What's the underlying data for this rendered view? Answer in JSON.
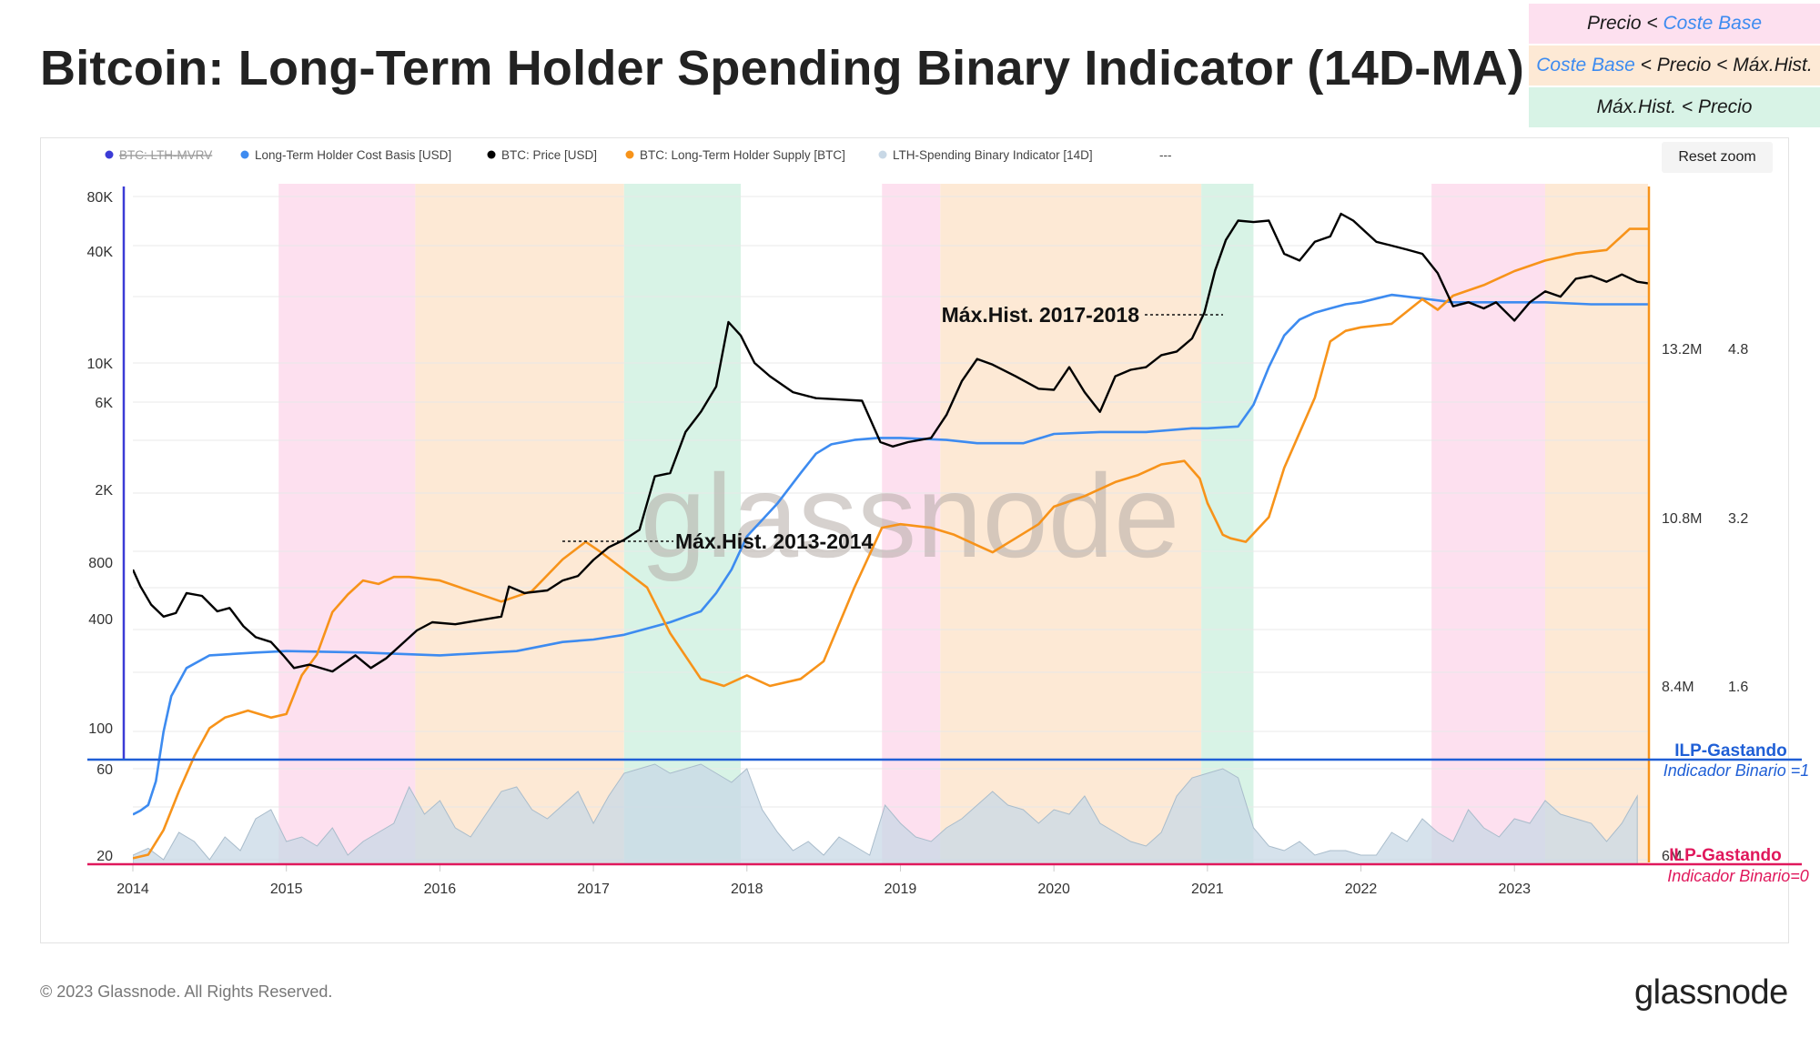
{
  "title": "Bitcoin: Long-Term Holder Spending Binary Indicator (14D-MA)",
  "key_box": [
    {
      "parts": [
        {
          "t": "Precio < ",
          "c": "dark"
        },
        {
          "t": "Coste Base",
          "c": "blue"
        }
      ],
      "bg": "#fde0ef"
    },
    {
      "parts": [
        {
          "t": "Coste Base",
          "c": "blue"
        },
        {
          "t": " < Precio < Máx.Hist.",
          "c": "dark"
        }
      ],
      "bg": "#fde9d5"
    },
    {
      "parts": [
        {
          "t": "Máx.Hist. < Precio",
          "c": "dark"
        }
      ],
      "bg": "#d8f3e6"
    }
  ],
  "reset_zoom_label": "Reset zoom",
  "footer_copyright": "© 2023 Glassnode. All Rights Reserved.",
  "brand": "glassnode",
  "chart_data": {
    "type": "line",
    "title": "Bitcoin: Long-Term Holder Spending Binary Indicator (14D-MA)",
    "legend_position": "top-left",
    "grid": true,
    "watermark": "glassnode",
    "legend": [
      {
        "name": "BTC: LTH-MVRV",
        "color": "#3b3bd6",
        "disabled": true
      },
      {
        "name": "Long-Term Holder Cost Basis [USD]",
        "color": "#3d8bf0"
      },
      {
        "name": "BTC: Price [USD]",
        "color": "#000000"
      },
      {
        "name": "BTC: Long-Term Holder Supply [BTC]",
        "color": "#f7931a"
      },
      {
        "name": "LTH-Spending Binary Indicator [14D]",
        "color": "#c8d8e6"
      },
      {
        "name": "---",
        "color": "#888888"
      }
    ],
    "x_ticks": [
      "2014",
      "2015",
      "2016",
      "2017",
      "2018",
      "2019",
      "2020",
      "2021",
      "2022",
      "2023"
    ],
    "x_range": [
      2014.0,
      2023.87
    ],
    "price_axis": {
      "scale": "log",
      "ticks": [
        "80K",
        "40K",
        "10K",
        "6K",
        "2K",
        "800",
        "400",
        "100"
      ]
    },
    "binary_axis": {
      "ticks": [
        "60",
        "20"
      ]
    },
    "supply_axis": {
      "ticks": [
        "13.2M",
        "10.8M",
        "8.4M",
        "6M"
      ]
    },
    "mvrv_axis": {
      "ticks": [
        "4.8",
        "3.2",
        "1.6"
      ]
    },
    "regimes": [
      {
        "start": 2014.95,
        "end": 2015.84,
        "label": "Precio < Coste Base",
        "color": "#fde0ef"
      },
      {
        "start": 2015.84,
        "end": 2017.2,
        "label": "Coste Base < Precio < Máx.Hist.",
        "color": "#fde9d5"
      },
      {
        "start": 2017.2,
        "end": 2017.96,
        "label": "Máx.Hist. < Precio",
        "color": "#d8f3e6"
      },
      {
        "start": 2018.88,
        "end": 2019.26,
        "label": "Precio < Coste Base",
        "color": "#fde0ef"
      },
      {
        "start": 2019.26,
        "end": 2020.96,
        "label": "Coste Base < Precio < Máx.Hist.",
        "color": "#fde9d5"
      },
      {
        "start": 2020.96,
        "end": 2021.3,
        "label": "Máx.Hist. < Precio",
        "color": "#d8f3e6"
      },
      {
        "start": 2022.46,
        "end": 2023.2,
        "label": "Precio < Coste Base",
        "color": "#fde0ef"
      },
      {
        "start": 2023.2,
        "end": 2023.87,
        "label": "Coste Base < Precio < Máx.Hist.",
        "color": "#fde9d5"
      }
    ],
    "annotations": [
      {
        "text": "Máx.Hist. 2013-2014",
        "x": 2016.76,
        "price": 1150
      },
      {
        "text": "Máx.Hist. 2017-2018",
        "x": 2020.86,
        "price": 19700
      }
    ],
    "threshold_lines": [
      {
        "label": "ILP-Gastando",
        "sublabel": "Indicador Binario =1",
        "color": "#1f5fd6"
      },
      {
        "label": "ILP-Gastando",
        "sublabel": "Indicador Binario=0",
        "color": "#e0185c"
      }
    ],
    "series": [
      {
        "name": "BTC: Price [USD]",
        "color": "#000000",
        "x": [
          2014.0,
          2014.05,
          2014.12,
          2014.2,
          2014.28,
          2014.35,
          2014.45,
          2014.55,
          2014.63,
          2014.72,
          2014.8,
          2014.9,
          2014.98,
          2015.05,
          2015.15,
          2015.3,
          2015.45,
          2015.55,
          2015.65,
          2015.75,
          2015.85,
          2015.95,
          2016.1,
          2016.25,
          2016.4,
          2016.45,
          2016.55,
          2016.7,
          2016.8,
          2016.9,
          2017.0,
          2017.1,
          2017.2,
          2017.3,
          2017.4,
          2017.5,
          2017.6,
          2017.7,
          2017.8,
          2017.88,
          2017.96,
          2018.05,
          2018.15,
          2018.3,
          2018.45,
          2018.6,
          2018.75,
          2018.87,
          2018.95,
          2019.05,
          2019.2,
          2019.3,
          2019.4,
          2019.5,
          2019.6,
          2019.75,
          2019.9,
          2020.0,
          2020.1,
          2020.2,
          2020.3,
          2020.4,
          2020.5,
          2020.6,
          2020.7,
          2020.8,
          2020.9,
          2020.98,
          2021.05,
          2021.12,
          2021.2,
          2021.3,
          2021.4,
          2021.5,
          2021.6,
          2021.7,
          2021.8,
          2021.87,
          2021.95,
          2022.1,
          2022.2,
          2022.3,
          2022.4,
          2022.5,
          2022.6,
          2022.7,
          2022.8,
          2022.88,
          2023.0,
          2023.1,
          2023.2,
          2023.3,
          2023.4,
          2023.5,
          2023.6,
          2023.7,
          2023.8,
          2023.87
        ],
        "y": [
          800,
          650,
          520,
          450,
          470,
          600,
          580,
          480,
          500,
          400,
          350,
          330,
          280,
          240,
          250,
          230,
          280,
          240,
          270,
          320,
          380,
          420,
          410,
          430,
          450,
          650,
          600,
          620,
          700,
          740,
          900,
          1050,
          1150,
          1300,
          2500,
          2600,
          4300,
          5500,
          7500,
          16500,
          14000,
          10000,
          8500,
          7000,
          6500,
          6400,
          6300,
          3800,
          3600,
          3800,
          4000,
          5300,
          8000,
          10500,
          9800,
          8500,
          7300,
          7200,
          9500,
          7000,
          5500,
          8500,
          9200,
          9500,
          11000,
          11500,
          13500,
          18500,
          31000,
          45000,
          57000,
          56000,
          57000,
          38000,
          35000,
          44000,
          47000,
          62000,
          57000,
          44000,
          42000,
          40000,
          38000,
          30000,
          20000,
          21000,
          19500,
          21000,
          16800,
          21000,
          24000,
          22500,
          28000,
          29000,
          27000,
          29500,
          27000,
          26500
        ]
      },
      {
        "name": "Long-Term Holder Cost Basis [USD]",
        "color": "#3d8bf0",
        "x": [
          2014.0,
          2014.05,
          2014.1,
          2014.15,
          2014.2,
          2014.25,
          2014.35,
          2014.5,
          2014.8,
          2015.0,
          2015.5,
          2016.0,
          2016.5,
          2016.8,
          2017.0,
          2017.2,
          2017.5,
          2017.7,
          2017.8,
          2017.9,
          2018.0,
          2018.2,
          2018.35,
          2018.45,
          2018.55,
          2018.7,
          2018.85,
          2019.0,
          2019.3,
          2019.5,
          2019.8,
          2020.0,
          2020.3,
          2020.6,
          2020.9,
          2021.0,
          2021.2,
          2021.3,
          2021.4,
          2021.5,
          2021.6,
          2021.7,
          2021.8,
          2021.9,
          2022.0,
          2022.2,
          2022.4,
          2022.6,
          2022.8,
          2023.0,
          2023.2,
          2023.5,
          2023.87
        ],
        "y": [
          40,
          42,
          45,
          60,
          110,
          170,
          240,
          280,
          290,
          295,
          290,
          280,
          295,
          330,
          340,
          360,
          420,
          480,
          600,
          800,
          1200,
          1800,
          2600,
          3300,
          3700,
          3900,
          4000,
          4000,
          3900,
          3750,
          3750,
          4200,
          4300,
          4300,
          4500,
          4500,
          4600,
          6000,
          9500,
          14000,
          17000,
          18500,
          19500,
          20500,
          21000,
          23000,
          22000,
          21000,
          21000,
          21000,
          21000,
          20500,
          20500
        ]
      },
      {
        "name": "BTC: Long-Term Holder Supply [BTC]",
        "color": "#f7931a",
        "x": [
          2014.0,
          2014.1,
          2014.2,
          2014.3,
          2014.4,
          2014.5,
          2014.6,
          2014.75,
          2014.9,
          2015.0,
          2015.1,
          2015.2,
          2015.3,
          2015.4,
          2015.5,
          2015.6,
          2015.7,
          2015.8,
          2016.0,
          2016.2,
          2016.4,
          2016.6,
          2016.8,
          2016.95,
          2017.05,
          2017.2,
          2017.35,
          2017.5,
          2017.7,
          2017.85,
          2018.0,
          2018.15,
          2018.35,
          2018.5,
          2018.7,
          2018.88,
          2019.0,
          2019.2,
          2019.35,
          2019.5,
          2019.6,
          2019.75,
          2019.9,
          2020.0,
          2020.2,
          2020.4,
          2020.55,
          2020.7,
          2020.85,
          2020.95,
          2021.0,
          2021.1,
          2021.15,
          2021.25,
          2021.4,
          2021.5,
          2021.6,
          2021.7,
          2021.8,
          2021.9,
          2022.0,
          2022.2,
          2022.4,
          2022.5,
          2022.6,
          2022.8,
          2023.0,
          2023.2,
          2023.4,
          2023.6,
          2023.75,
          2023.87
        ],
        "y": [
          5.95,
          6.0,
          6.35,
          6.9,
          7.4,
          7.8,
          7.95,
          8.05,
          7.95,
          8.0,
          8.55,
          8.85,
          9.45,
          9.7,
          9.9,
          9.85,
          9.95,
          9.95,
          9.9,
          9.75,
          9.6,
          9.75,
          10.2,
          10.45,
          10.3,
          10.05,
          9.8,
          9.15,
          8.5,
          8.4,
          8.55,
          8.4,
          8.5,
          8.75,
          9.8,
          10.65,
          10.7,
          10.65,
          10.55,
          10.4,
          10.3,
          10.5,
          10.7,
          10.95,
          11.1,
          11.3,
          11.4,
          11.55,
          11.6,
          11.35,
          11.0,
          10.55,
          10.5,
          10.45,
          10.8,
          11.5,
          12.0,
          12.5,
          13.3,
          13.45,
          13.5,
          13.55,
          13.9,
          13.75,
          13.95,
          14.1,
          14.3,
          14.45,
          14.55,
          14.6,
          14.9,
          14.9
        ]
      },
      {
        "name": "LTH-Spending Binary Indicator [14D]",
        "color": "#c8d8e6",
        "x": [
          2014.0,
          2014.1,
          2014.2,
          2014.3,
          2014.4,
          2014.5,
          2014.6,
          2014.7,
          2014.8,
          2014.9,
          2015.0,
          2015.1,
          2015.2,
          2015.3,
          2015.4,
          2015.5,
          2015.6,
          2015.7,
          2015.8,
          2015.9,
          2016.0,
          2016.1,
          2016.2,
          2016.3,
          2016.4,
          2016.5,
          2016.6,
          2016.7,
          2016.8,
          2016.9,
          2017.0,
          2017.1,
          2017.2,
          2017.3,
          2017.4,
          2017.5,
          2017.6,
          2017.7,
          2017.8,
          2017.9,
          2018.0,
          2018.1,
          2018.2,
          2018.3,
          2018.4,
          2018.5,
          2018.6,
          2018.7,
          2018.8,
          2018.9,
          2019.0,
          2019.1,
          2019.2,
          2019.3,
          2019.4,
          2019.5,
          2019.6,
          2019.7,
          2019.8,
          2019.9,
          2020.0,
          2020.1,
          2020.2,
          2020.3,
          2020.4,
          2020.5,
          2020.6,
          2020.7,
          2020.8,
          2020.9,
          2021.0,
          2021.1,
          2021.2,
          2021.3,
          2021.4,
          2021.5,
          2021.6,
          2021.7,
          2021.8,
          2021.9,
          2022.0,
          2022.1,
          2022.2,
          2022.3,
          2022.4,
          2022.5,
          2022.6,
          2022.7,
          2022.8,
          2022.9,
          2023.0,
          2023.1,
          2023.2,
          2023.3,
          2023.4,
          2023.5,
          2023.6,
          2023.7,
          2023.8
        ],
        "y": [
          22,
          25,
          20,
          32,
          28,
          20,
          30,
          24,
          38,
          42,
          28,
          30,
          26,
          34,
          22,
          28,
          32,
          36,
          52,
          40,
          46,
          34,
          30,
          40,
          50,
          52,
          42,
          38,
          44,
          50,
          36,
          48,
          58,
          60,
          62,
          58,
          60,
          62,
          58,
          54,
          60,
          42,
          32,
          24,
          28,
          22,
          30,
          26,
          22,
          44,
          36,
          30,
          28,
          34,
          38,
          44,
          50,
          44,
          42,
          36,
          42,
          40,
          48,
          36,
          32,
          28,
          26,
          32,
          48,
          56,
          58,
          60,
          56,
          34,
          26,
          24,
          28,
          22,
          24,
          24,
          22,
          22,
          32,
          28,
          38,
          32,
          28,
          42,
          34,
          30,
          38,
          36,
          46,
          40,
          38,
          36,
          28,
          36,
          48
        ]
      }
    ]
  }
}
